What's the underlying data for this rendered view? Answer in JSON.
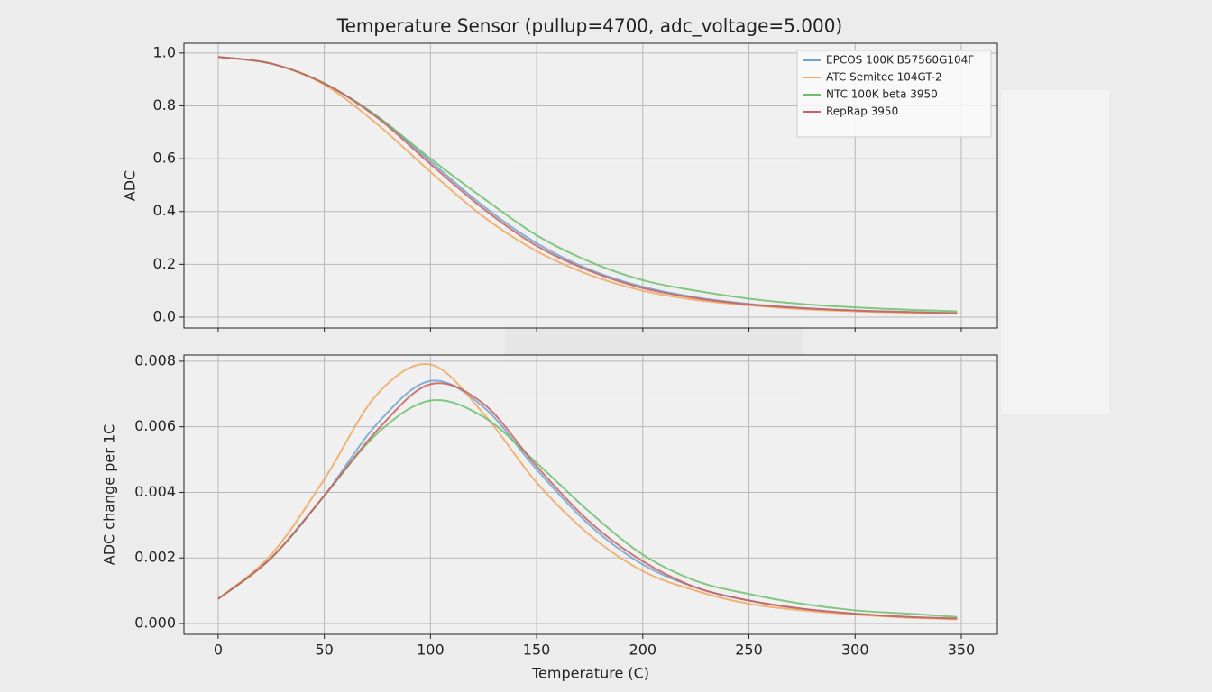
{
  "title": "Temperature Sensor (pullup=4700, adc_voltage=5.000)",
  "chart_data": [
    {
      "type": "line",
      "ylabel": "ADC",
      "x": [
        0,
        25,
        50,
        75,
        100,
        125,
        150,
        175,
        200,
        225,
        250,
        275,
        300,
        325,
        348
      ],
      "series": [
        {
          "name": "EPCOS 100K B57560G104F",
          "color": "#6fa6d0",
          "values": [
            0.985,
            0.96,
            0.885,
            0.76,
            0.59,
            0.42,
            0.28,
            0.18,
            0.115,
            0.075,
            0.05,
            0.035,
            0.025,
            0.02,
            0.015
          ]
        },
        {
          "name": "ATC Semitec 104GT-2",
          "color": "#f0a860",
          "values": [
            0.985,
            0.96,
            0.88,
            0.73,
            0.55,
            0.38,
            0.25,
            0.16,
            0.1,
            0.065,
            0.045,
            0.03,
            0.022,
            0.017,
            0.013
          ]
        },
        {
          "name": "NTC 100K beta 3950",
          "color": "#6dbf6d",
          "values": [
            0.985,
            0.96,
            0.885,
            0.76,
            0.6,
            0.45,
            0.31,
            0.21,
            0.14,
            0.1,
            0.07,
            0.05,
            0.037,
            0.028,
            0.022
          ]
        },
        {
          "name": "RepRap 3950",
          "color": "#c86060",
          "values": [
            0.985,
            0.96,
            0.885,
            0.755,
            0.58,
            0.41,
            0.27,
            0.175,
            0.11,
            0.072,
            0.048,
            0.034,
            0.025,
            0.019,
            0.015
          ]
        }
      ],
      "xlim": [
        -16.1,
        367
      ],
      "xticks": [
        0,
        50,
        100,
        150,
        200,
        250,
        300,
        350
      ],
      "ylim": [
        -0.041,
        1.037
      ],
      "yticks": [
        {
          "value": 0,
          "label": "0.0"
        },
        0.2,
        0.4,
        0.6,
        0.8,
        {
          "value": 1,
          "label": "1.0"
        }
      ],
      "grid": true,
      "legend": "upper right"
    },
    {
      "type": "line",
      "ylabel": "ADC change per 1C",
      "xlabel": "Temperature (C)",
      "x": [
        0,
        25,
        50,
        75,
        100,
        125,
        150,
        175,
        200,
        225,
        250,
        275,
        300,
        325,
        348
      ],
      "series": [
        {
          "name": "EPCOS 100K B57560G104F",
          "color": "#6fa6d0",
          "values": [
            0.00075,
            0.002,
            0.0039,
            0.0061,
            0.0074,
            0.0066,
            0.0047,
            0.003,
            0.0018,
            0.0011,
            0.0007,
            0.00045,
            0.0003,
            0.0002,
            0.00015
          ]
        },
        {
          "name": "ATC Semitec 104GT-2",
          "color": "#f0a860",
          "values": [
            0.00075,
            0.0021,
            0.0044,
            0.007,
            0.0079,
            0.0064,
            0.0043,
            0.0027,
            0.0016,
            0.001,
            0.0006,
            0.0004,
            0.00027,
            0.00018,
            0.00013
          ]
        },
        {
          "name": "NTC 100K beta 3950",
          "color": "#6dbf6d",
          "values": [
            0.00075,
            0.002,
            0.0039,
            0.0058,
            0.0068,
            0.0063,
            0.0049,
            0.0034,
            0.0021,
            0.0013,
            0.0009,
            0.0006,
            0.0004,
            0.0003,
            0.0002
          ]
        },
        {
          "name": "RepRap 3950",
          "color": "#c86060",
          "values": [
            0.00075,
            0.002,
            0.0039,
            0.0059,
            0.0073,
            0.0067,
            0.0048,
            0.0031,
            0.0019,
            0.0011,
            0.0007,
            0.00045,
            0.0003,
            0.0002,
            0.00015
          ]
        }
      ],
      "xlim": [
        -16.1,
        367
      ],
      "xticks": [
        0,
        50,
        100,
        150,
        200,
        250,
        300,
        350
      ],
      "ylim": [
        -0.00033,
        0.00819
      ],
      "yticks": [
        {
          "value": 0,
          "label": "0.000"
        },
        {
          "value": 0.002,
          "label": "0.002"
        },
        {
          "value": 0.004,
          "label": "0.004"
        },
        {
          "value": 0.006,
          "label": "0.006"
        },
        {
          "value": 0.008,
          "label": "0.008"
        }
      ],
      "grid": true
    }
  ]
}
